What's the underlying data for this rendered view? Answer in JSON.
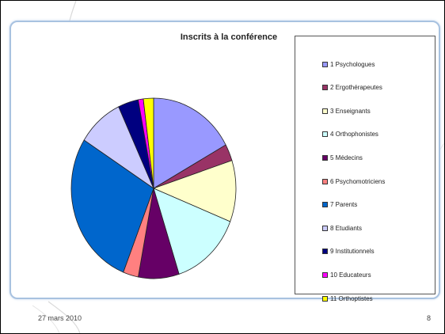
{
  "slide": {
    "date": "27 mars 2010",
    "page_number": "8"
  },
  "chart_data": {
    "type": "pie",
    "title": "Inscrits à la conférence",
    "legend_position": "right",
    "slices": [
      {
        "label": "1 Psychologues",
        "value": 17,
        "color": "#9999ff"
      },
      {
        "label": "2 Ergothérapeutes",
        "value": 3,
        "color": "#993366"
      },
      {
        "label": "3 Enseignants",
        "value": 11,
        "color": "#ffffcc"
      },
      {
        "label": "4 Orthophonistes",
        "value": 14,
        "color": "#ccffff"
      },
      {
        "label": "5 Médecins",
        "value": 8,
        "color": "#660066"
      },
      {
        "label": "6 Psychomotriciens",
        "value": 3,
        "color": "#ff8080"
      },
      {
        "label": "7 Parents",
        "value": 28,
        "color": "#0066cc"
      },
      {
        "label": "8 Etudiants",
        "value": 9,
        "color": "#ccccff"
      },
      {
        "label": "9 Institutionnels",
        "value": 4,
        "color": "#000080"
      },
      {
        "label": "10 Educateurs",
        "value": 1,
        "color": "#ff00ff"
      },
      {
        "label": "11 Orthoptistes",
        "value": 2,
        "color": "#ffff00"
      }
    ]
  }
}
